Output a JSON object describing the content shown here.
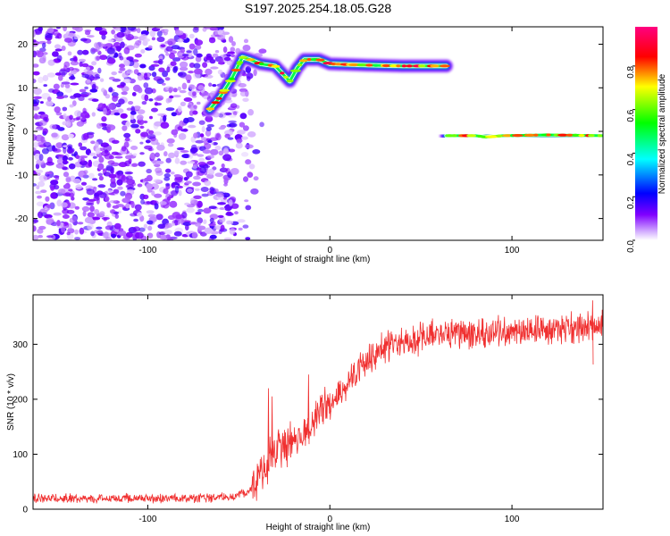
{
  "title": "S197.2025.254.18.05.G28",
  "chart_data": [
    {
      "type": "heatmap",
      "title": "S197.2025.254.18.05.G28",
      "xlabel": "Height of straight line (km)",
      "ylabel": "Frequency (Hz)",
      "xlim": [
        -163,
        150
      ],
      "ylim": [
        -25,
        24
      ],
      "xticks": [
        -100,
        0,
        100
      ],
      "xtick_labels": [
        "-100",
        "0",
        "100"
      ],
      "yticks": [
        -20,
        -10,
        0,
        10,
        20
      ],
      "ytick_labels": [
        "-20",
        "-10",
        "0",
        "10",
        "20"
      ],
      "colorbar": {
        "label": "Normalized spectral amplitude",
        "range": [
          0,
          0.98
        ],
        "ticks": [
          0.0,
          0.2,
          0.4,
          0.6,
          0.8
        ],
        "tick_labels": [
          "0.0",
          "0.2",
          "0.4",
          "0.6",
          "0.8"
        ],
        "colormap": [
          "#ffffff",
          "#8000ff",
          "#0000ff",
          "#00ffff",
          "#00ff00",
          "#ffff00",
          "#ff0000",
          "#ff0080"
        ]
      },
      "noise_region": {
        "x_range": [
          -163,
          -45
        ],
        "y_range": [
          -25,
          24
        ],
        "amplitude_range": [
          0.02,
          0.18
        ]
      },
      "tracks": [
        {
          "name": "ramp",
          "points": [
            [
              -66,
              5
            ],
            [
              -60,
              8
            ],
            [
              -54,
              12
            ],
            [
              -48,
              17
            ],
            [
              -44,
              16.5
            ],
            [
              -38,
              15.5
            ],
            [
              -30,
              15
            ],
            [
              -22,
              11.5
            ],
            [
              -18,
              14.5
            ],
            [
              -14,
              16.5
            ],
            [
              -6,
              16.5
            ],
            [
              0,
              15.5
            ],
            [
              20,
              15.2
            ],
            [
              40,
              15
            ],
            [
              64,
              15
            ]
          ],
          "amplitude": 0.9
        },
        {
          "name": "tone",
          "points": [
            [
              64,
              -1
            ],
            [
              80,
              -1
            ],
            [
              86,
              -1.3
            ],
            [
              95,
              -1
            ],
            [
              120,
              -0.8
            ],
            [
              150,
              -1
            ]
          ],
          "amplitude": 0.9
        }
      ]
    },
    {
      "type": "line",
      "xlabel": "Height of straight line (km)",
      "ylabel": "SNR (10 * v/v)",
      "xlim": [
        -163,
        150
      ],
      "ylim": [
        0,
        390
      ],
      "xticks": [
        -100,
        0,
        100
      ],
      "xtick_labels": [
        "-100",
        "0",
        "100"
      ],
      "yticks": [
        0,
        100,
        200,
        300
      ],
      "ytick_labels": [
        "0",
        "100",
        "200",
        "300"
      ],
      "color": "#f03030",
      "envelope": {
        "x": [
          -163,
          -120,
          -80,
          -55,
          -45,
          -40,
          -35,
          -30,
          -20,
          -10,
          0,
          10,
          20,
          30,
          40,
          50,
          60,
          80,
          100,
          120,
          150
        ],
        "y": [
          20,
          20,
          20,
          22,
          30,
          50,
          80,
          110,
          120,
          155,
          190,
          230,
          270,
          295,
          305,
          310,
          318,
          320,
          322,
          325,
          330
        ]
      },
      "spikes": [
        {
          "x": -34,
          "y": 220
        },
        {
          "x": -32,
          "y": 205
        },
        {
          "x": -22,
          "y": 160
        },
        {
          "x": -12,
          "y": 245
        },
        {
          "x": 144,
          "y": 380
        }
      ]
    }
  ]
}
